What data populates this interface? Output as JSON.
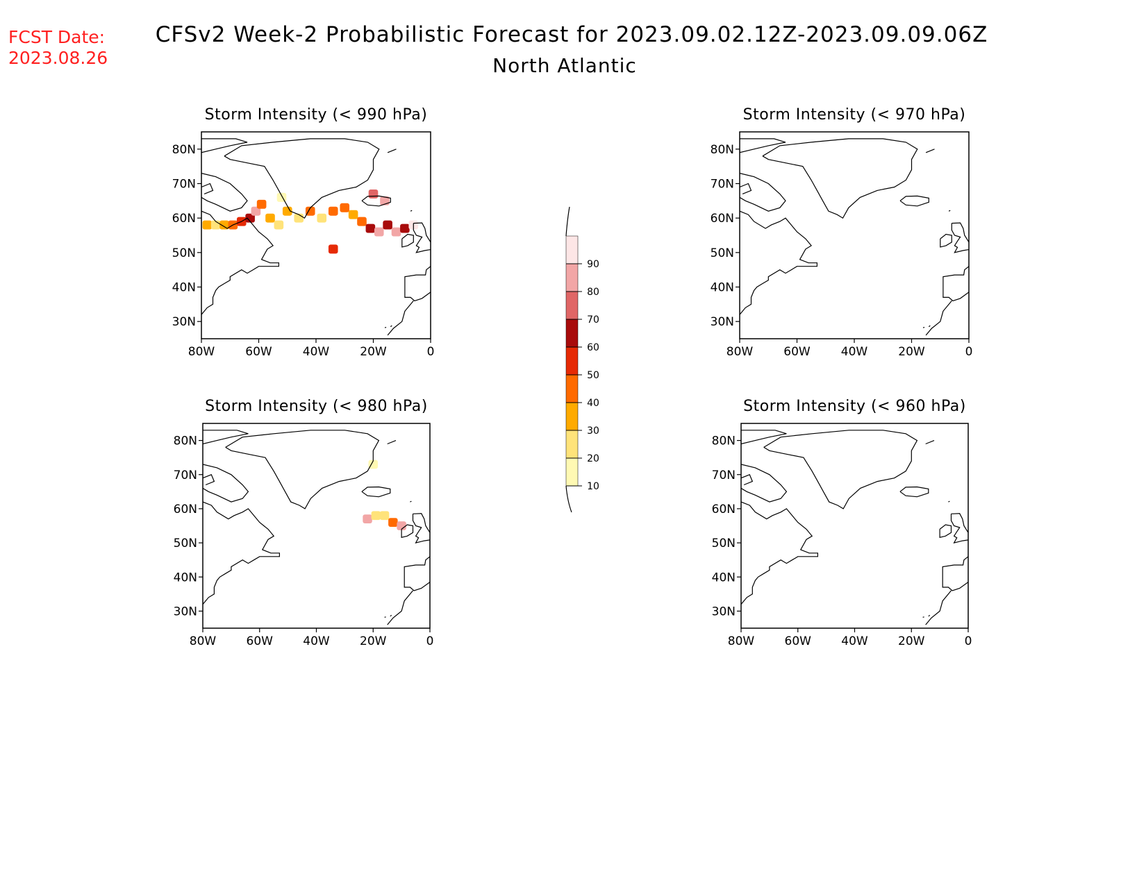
{
  "header": {
    "fcst_label": "FCST Date:",
    "fcst_date": "2023.08.26",
    "title": "CFSv2 Week-2 Probabilistic Forecast for 2023.09.02.12Z-2023.09.09.06Z",
    "subtitle": "North Atlantic",
    "fcst_color": "#ff2020"
  },
  "axes": {
    "lat_labels": [
      "80N",
      "70N",
      "60N",
      "50N",
      "40N",
      "30N"
    ],
    "lon_labels": [
      "80W",
      "60W",
      "40W",
      "20W",
      "0"
    ],
    "lat_values": [
      80,
      70,
      60,
      50,
      40,
      30
    ],
    "lon_values": [
      -80,
      -60,
      -40,
      -20,
      0
    ],
    "lat_range": [
      25,
      85
    ],
    "lon_range": [
      -80,
      0
    ]
  },
  "panels": [
    {
      "id": "p990",
      "title": "Storm Intensity (< 990 hPa)",
      "cells": [
        {
          "lon": -78,
          "lat": 58,
          "p": 30
        },
        {
          "lon": -75,
          "lat": 58,
          "p": 20
        },
        {
          "lon": -72,
          "lat": 58,
          "p": 30
        },
        {
          "lon": -69,
          "lat": 58,
          "p": 40
        },
        {
          "lon": -66,
          "lat": 59,
          "p": 50
        },
        {
          "lon": -63,
          "lat": 60,
          "p": 60
        },
        {
          "lon": -61,
          "lat": 62,
          "p": 80
        },
        {
          "lon": -59,
          "lat": 64,
          "p": 40
        },
        {
          "lon": -56,
          "lat": 60,
          "p": 30
        },
        {
          "lon": -53,
          "lat": 58,
          "p": 20
        },
        {
          "lon": -50,
          "lat": 62,
          "p": 30
        },
        {
          "lon": -46,
          "lat": 60,
          "p": 20
        },
        {
          "lon": -42,
          "lat": 62,
          "p": 40
        },
        {
          "lon": -38,
          "lat": 60,
          "p": 20
        },
        {
          "lon": -34,
          "lat": 62,
          "p": 40
        },
        {
          "lon": -30,
          "lat": 63,
          "p": 40
        },
        {
          "lon": -27,
          "lat": 61,
          "p": 30
        },
        {
          "lon": -24,
          "lat": 59,
          "p": 40
        },
        {
          "lon": -21,
          "lat": 57,
          "p": 60
        },
        {
          "lon": -18,
          "lat": 56,
          "p": 80
        },
        {
          "lon": -15,
          "lat": 58,
          "p": 60
        },
        {
          "lon": -12,
          "lat": 56,
          "p": 80
        },
        {
          "lon": -9,
          "lat": 57,
          "p": 60
        },
        {
          "lon": -6,
          "lat": 58,
          "p": 90
        },
        {
          "lon": -20,
          "lat": 67,
          "p": 70
        },
        {
          "lon": -16,
          "lat": 65,
          "p": 80
        },
        {
          "lon": -34,
          "lat": 51,
          "p": 50
        },
        {
          "lon": -52,
          "lat": 66,
          "p": 10
        }
      ]
    },
    {
      "id": "p970",
      "title": "Storm Intensity (< 970 hPa)",
      "cells": []
    },
    {
      "id": "p980",
      "title": "Storm Intensity (< 980 hPa)",
      "cells": [
        {
          "lon": -22,
          "lat": 57,
          "p": 80
        },
        {
          "lon": -19,
          "lat": 58,
          "p": 20
        },
        {
          "lon": -16,
          "lat": 58,
          "p": 20
        },
        {
          "lon": -13,
          "lat": 56,
          "p": 40
        },
        {
          "lon": -10,
          "lat": 55,
          "p": 80
        },
        {
          "lon": -20,
          "lat": 73,
          "p": 10
        }
      ]
    },
    {
      "id": "p960",
      "title": "Storm Intensity (< 960 hPa)",
      "cells": []
    }
  ],
  "colorbar": {
    "labels": [
      "10",
      "20",
      "30",
      "40",
      "50",
      "60",
      "70",
      "80",
      "90"
    ],
    "colors": [
      "#fff9b3",
      "#ffe37a",
      "#ffaa00",
      "#ff6a00",
      "#e62a05",
      "#a80b0b",
      "#e06666",
      "#f2a6a6",
      "#fde6e6"
    ]
  }
}
